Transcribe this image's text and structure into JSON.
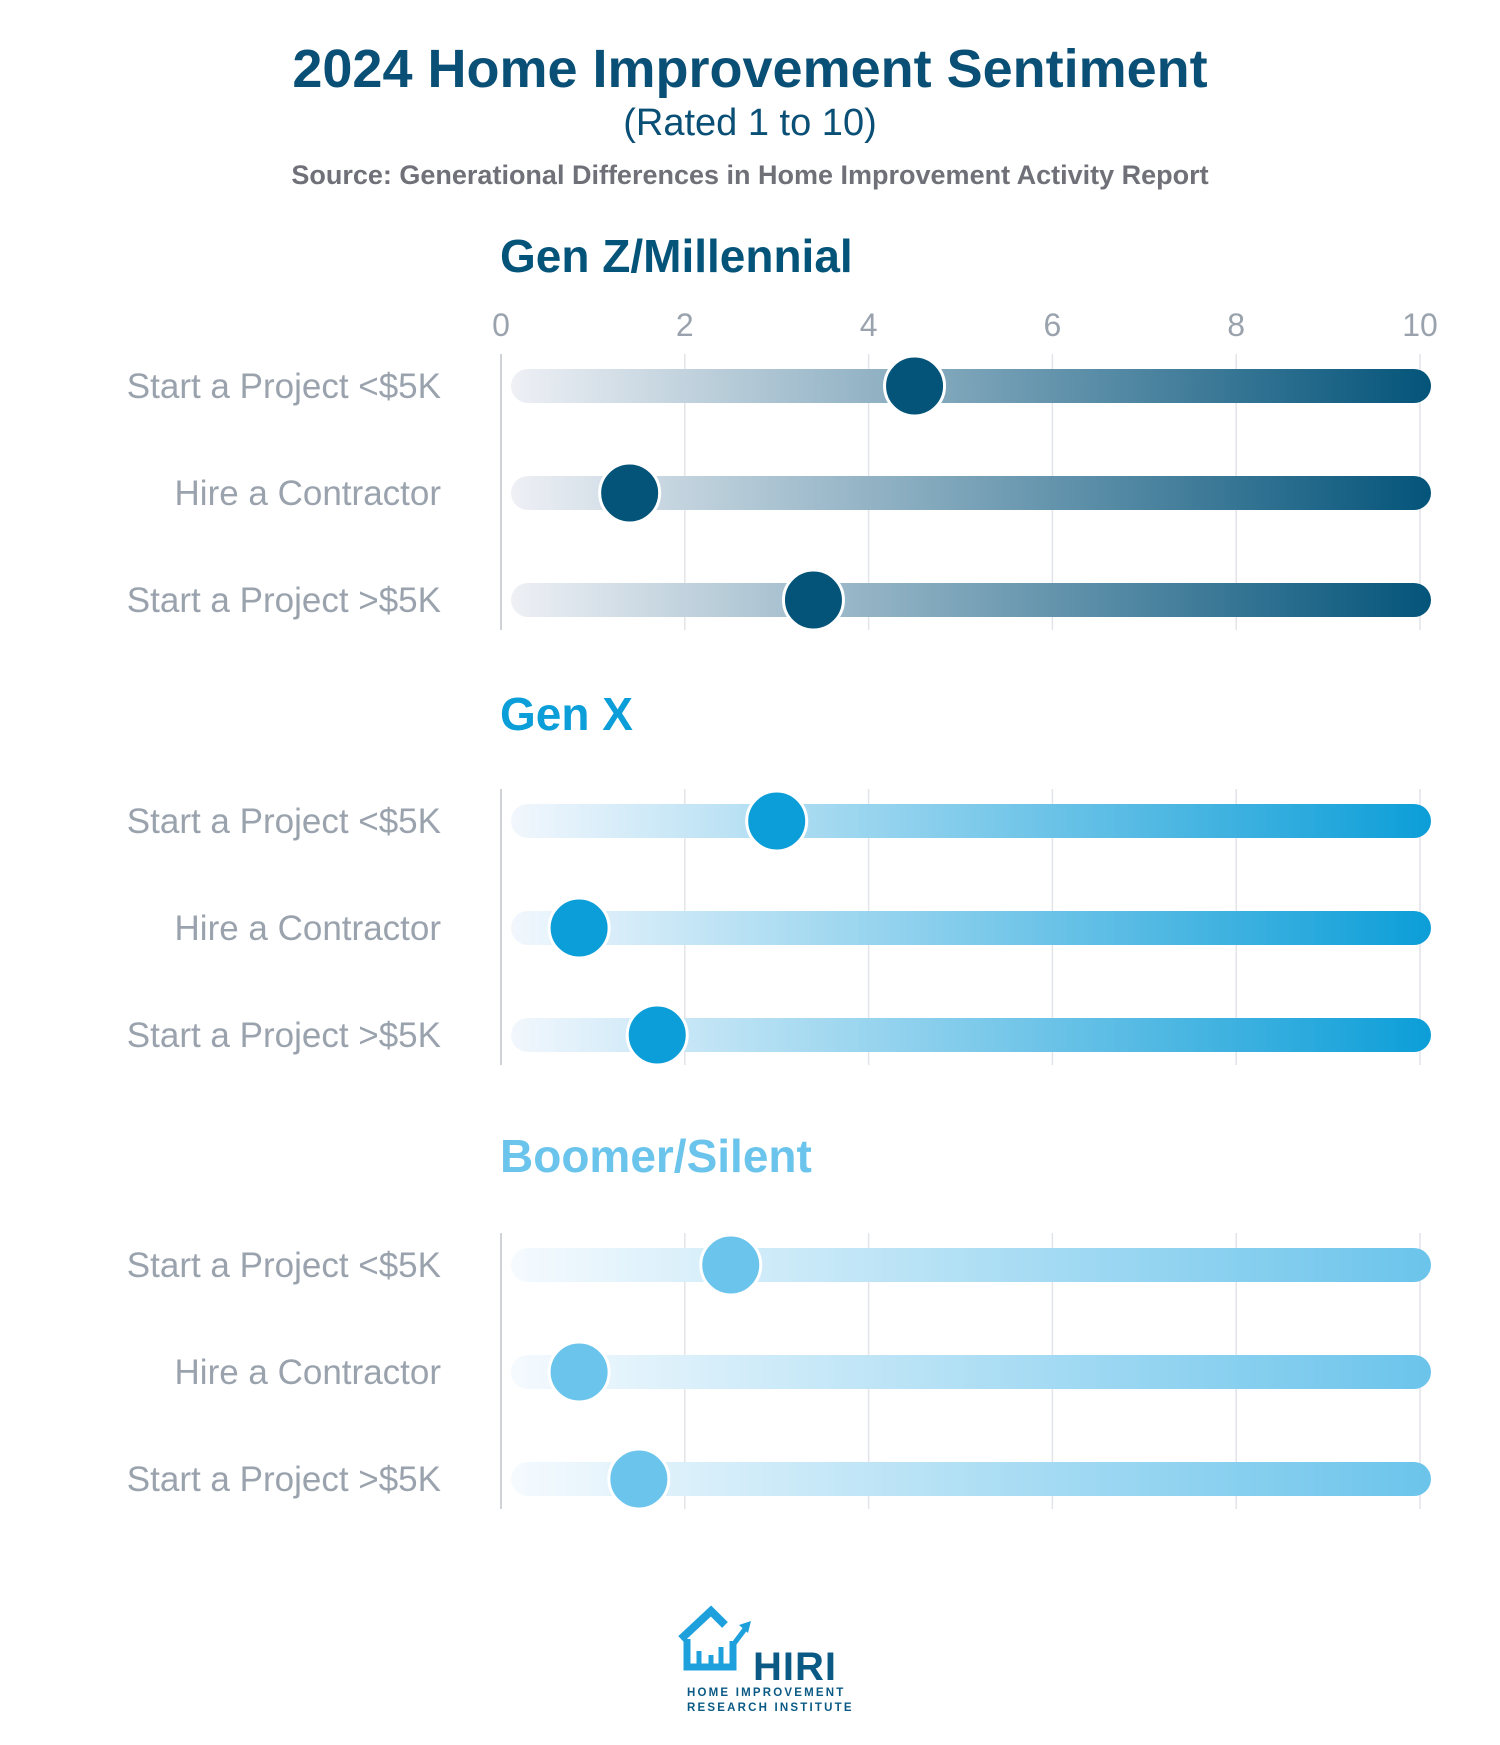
{
  "title": "2024 Home Improvement Sentiment",
  "subtitle": "(Rated 1 to 10)",
  "source": "Source: Generational Differences in Home Improvement Activity Report",
  "chart_data": {
    "type": "dot-slider",
    "xlim": [
      0,
      10
    ],
    "x_ticks": [
      "0",
      "2",
      "4",
      "6",
      "8",
      "10"
    ],
    "grid": true,
    "panels": [
      {
        "name": "Gen Z/Millennial",
        "color": "#04547a",
        "gradient_start": "#eef0f5",
        "categories": [
          "Start a Project <$5K",
          "Hire a Contractor",
          "Start a Project >$5K"
        ],
        "values": [
          4.5,
          1.4,
          3.4
        ]
      },
      {
        "name": "Gen X",
        "color": "#0c9ed8",
        "gradient_start": "#f2f7fd",
        "categories": [
          "Start a Project <$5K",
          "Hire a Contractor",
          "Start a Project >$5K"
        ],
        "values": [
          3.0,
          0.85,
          1.7
        ]
      },
      {
        "name": "Boomer/Silent",
        "color": "#6bc4eb",
        "gradient_start": "#f5fafe",
        "categories": [
          "Start a Project <$5K",
          "Hire a Contractor",
          "Start a Project >$5K"
        ],
        "values": [
          2.5,
          0.85,
          1.5
        ]
      }
    ]
  },
  "logo": {
    "name": "HIRI",
    "line1": "HOME IMPROVEMENT",
    "line2": "RESEARCH INSTITUTE"
  }
}
